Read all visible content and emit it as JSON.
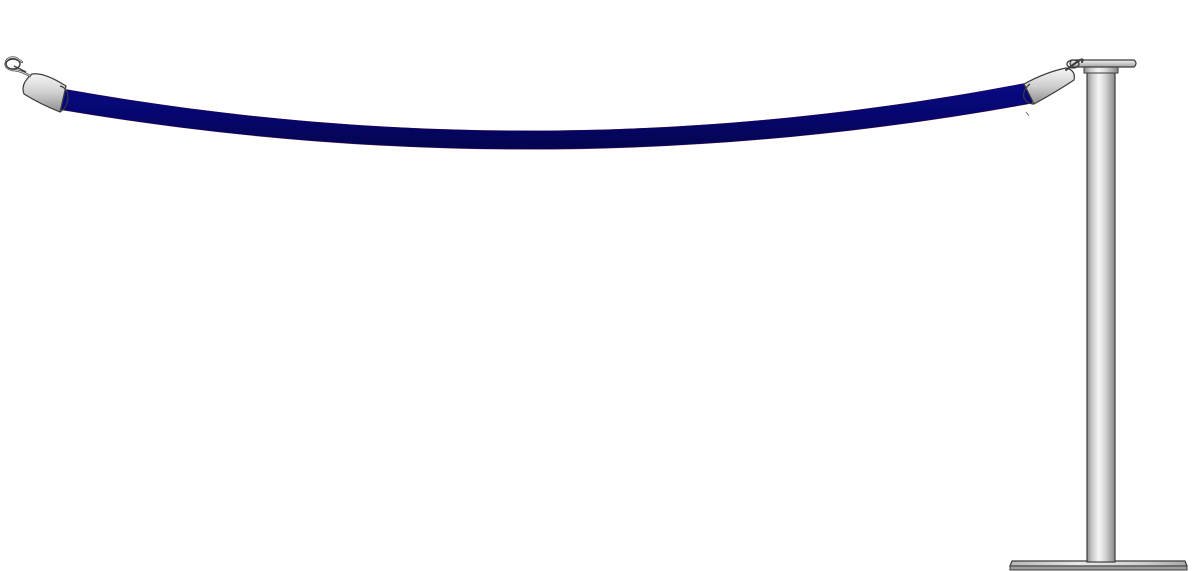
{
  "scene": {
    "subject": "rope-and-stanchion",
    "colors": {
      "rope": "#06066e",
      "rope_edge": "#8a2a2a",
      "metal_light": "#f4f4f4",
      "metal_mid": "#c6c6c6",
      "metal_dark": "#8e8e8e",
      "outline": "#3c3c3c",
      "background": "#ffffff"
    },
    "icons": [
      "snap-hook-icon",
      "rope-end-cap-icon",
      "stanchion-post-icon",
      "stanchion-base-icon"
    ]
  }
}
